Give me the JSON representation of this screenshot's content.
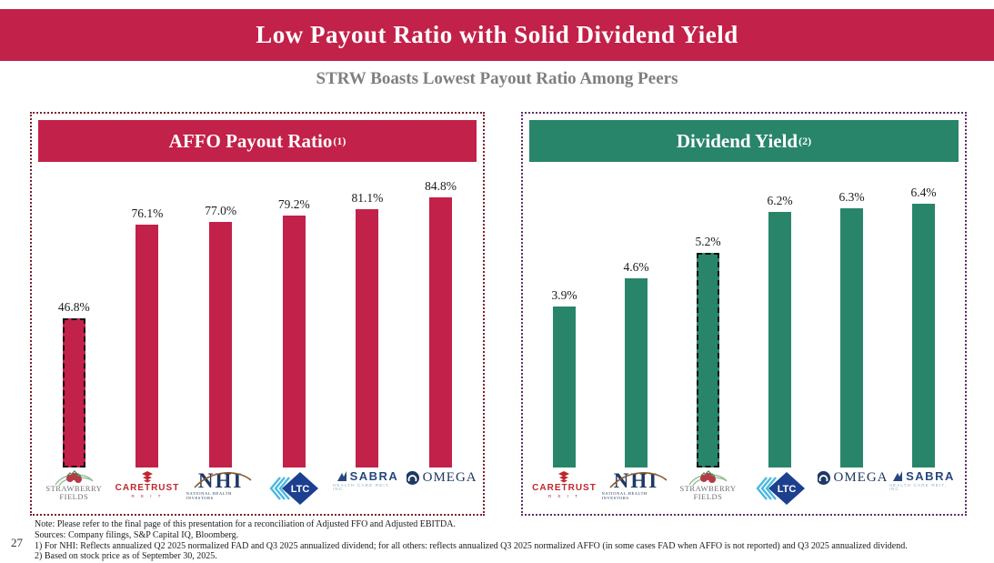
{
  "page": {
    "title": "Low Payout Ratio with Solid Dividend Yield",
    "subtitle": "STRW Boasts Lowest Payout Ratio Among Peers",
    "page_number": "27"
  },
  "colors": {
    "crimson": "#C22149",
    "green": "#28856A",
    "left_panel_border": "#7B2230",
    "right_panel_border": "#5F3069",
    "highlight_border": "#111111"
  },
  "chart_data": [
    {
      "type": "bar",
      "title": "AFFO Payout Ratio",
      "title_superscript": "(1)",
      "categories": [
        "Strawberry Fields",
        "CareTrust REIT",
        "National Health Investors",
        "LTC Properties",
        "Sabra Health Care REIT",
        "Omega Healthcare Investors"
      ],
      "logo_keys": [
        "strawberry-fields",
        "caretrust",
        "nhi",
        "ltc",
        "sabra",
        "omega"
      ],
      "values": [
        46.8,
        76.1,
        77.0,
        79.2,
        81.1,
        84.8
      ],
      "labels": [
        "46.8%",
        "76.1%",
        "77.0%",
        "79.2%",
        "81.1%",
        "84.8%"
      ],
      "highlight_index": 0,
      "bar_color": "#C22149",
      "ylim": [
        0,
        90
      ],
      "grid": false,
      "legend": "none"
    },
    {
      "type": "bar",
      "title": "Dividend Yield",
      "title_superscript": "(2)",
      "categories": [
        "CareTrust REIT",
        "National Health Investors",
        "Strawberry Fields",
        "LTC Properties",
        "Omega Healthcare Investors",
        "Sabra Health Care REIT"
      ],
      "logo_keys": [
        "caretrust",
        "nhi",
        "strawberry-fields",
        "ltc",
        "omega",
        "sabra"
      ],
      "values": [
        3.9,
        4.6,
        5.2,
        6.2,
        6.3,
        6.4
      ],
      "labels": [
        "3.9%",
        "4.6%",
        "5.2%",
        "6.2%",
        "6.3%",
        "6.4%"
      ],
      "highlight_index": 2,
      "bar_color": "#28856A",
      "ylim": [
        0,
        7
      ],
      "grid": false,
      "legend": "none"
    }
  ],
  "logos": {
    "strawberry-fields": {
      "line1": "STRAWBERRY",
      "line2": "FIELDS"
    },
    "caretrust": {
      "name": "CARETRUST",
      "sub": "R E I T"
    },
    "nhi": {
      "name": "NHI",
      "sub": "NATIONAL HEALTH INVESTORS"
    },
    "ltc": {
      "name": "LTC"
    },
    "sabra": {
      "name": "SABRA",
      "sub": "HEALTH CARE REIT, INC."
    },
    "omega": {
      "name": "OMEGA"
    }
  },
  "footnotes": {
    "note": "Note: Please refer to the final page of this presentation for a reconciliation of Adjusted FFO and Adjusted EBITDA.",
    "sources": "Sources: Company filings, S&P Capital IQ, Bloomberg.",
    "fn1": "1) For NHI: Reflects annualized Q2 2025 normalized FAD and Q3 2025 annualized dividend; for all others: reflects annualized Q3 2025 normalized AFFO (in some cases FAD when AFFO is not reported) and Q3 2025 annualized dividend.",
    "fn2": "2) Based on stock price as of September 30, 2025."
  }
}
